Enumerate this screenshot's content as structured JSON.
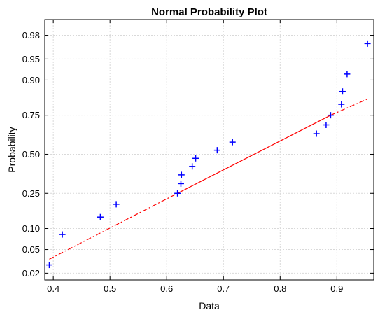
{
  "chart_data": {
    "type": "scatter",
    "title": "Normal Probability Plot",
    "xlabel": "Data",
    "ylabel": "Probability",
    "xlim": [
      0.385,
      0.965
    ],
    "ylim": [
      0.015,
      0.99
    ],
    "y_scale": "normal-probability",
    "grid": true,
    "x_ticks": [
      0.4,
      0.5,
      0.6,
      0.7,
      0.8,
      0.9
    ],
    "x_tick_labels": [
      "0.4",
      "0.5",
      "0.6",
      "0.7",
      "0.8",
      "0.9"
    ],
    "y_ticks": [
      0.02,
      0.05,
      0.1,
      0.25,
      0.5,
      0.75,
      0.9,
      0.95,
      0.98
    ],
    "y_tick_labels": [
      "0.02",
      "0.05",
      "0.10",
      "0.25",
      "0.50",
      "0.75",
      "0.90",
      "0.95",
      "0.98"
    ],
    "marker_color": "#0000ff",
    "line_color": "#ff0000",
    "series": [
      {
        "marker": "+",
        "x": [
          0.393,
          0.416,
          0.483,
          0.511,
          0.619,
          0.625,
          0.626,
          0.645,
          0.651,
          0.689,
          0.716,
          0.864,
          0.881,
          0.889,
          0.908,
          0.91,
          0.918,
          0.954
        ],
        "y": [
          0.028,
          0.083,
          0.139,
          0.194,
          0.25,
          0.306,
          0.361,
          0.417,
          0.472,
          0.528,
          0.583,
          0.639,
          0.694,
          0.75,
          0.806,
          0.861,
          0.917,
          0.972
        ]
      }
    ],
    "reference_line": {
      "solid_x": [
        0.619,
        0.889
      ],
      "solid_y": [
        0.25,
        0.75
      ],
      "dashed_x": [
        [
          0.393,
          0.619
        ],
        [
          0.889,
          0.954
        ]
      ],
      "dashed_y": [
        [
          0.035,
          0.25
        ],
        [
          0.75,
          0.83
        ]
      ]
    }
  }
}
